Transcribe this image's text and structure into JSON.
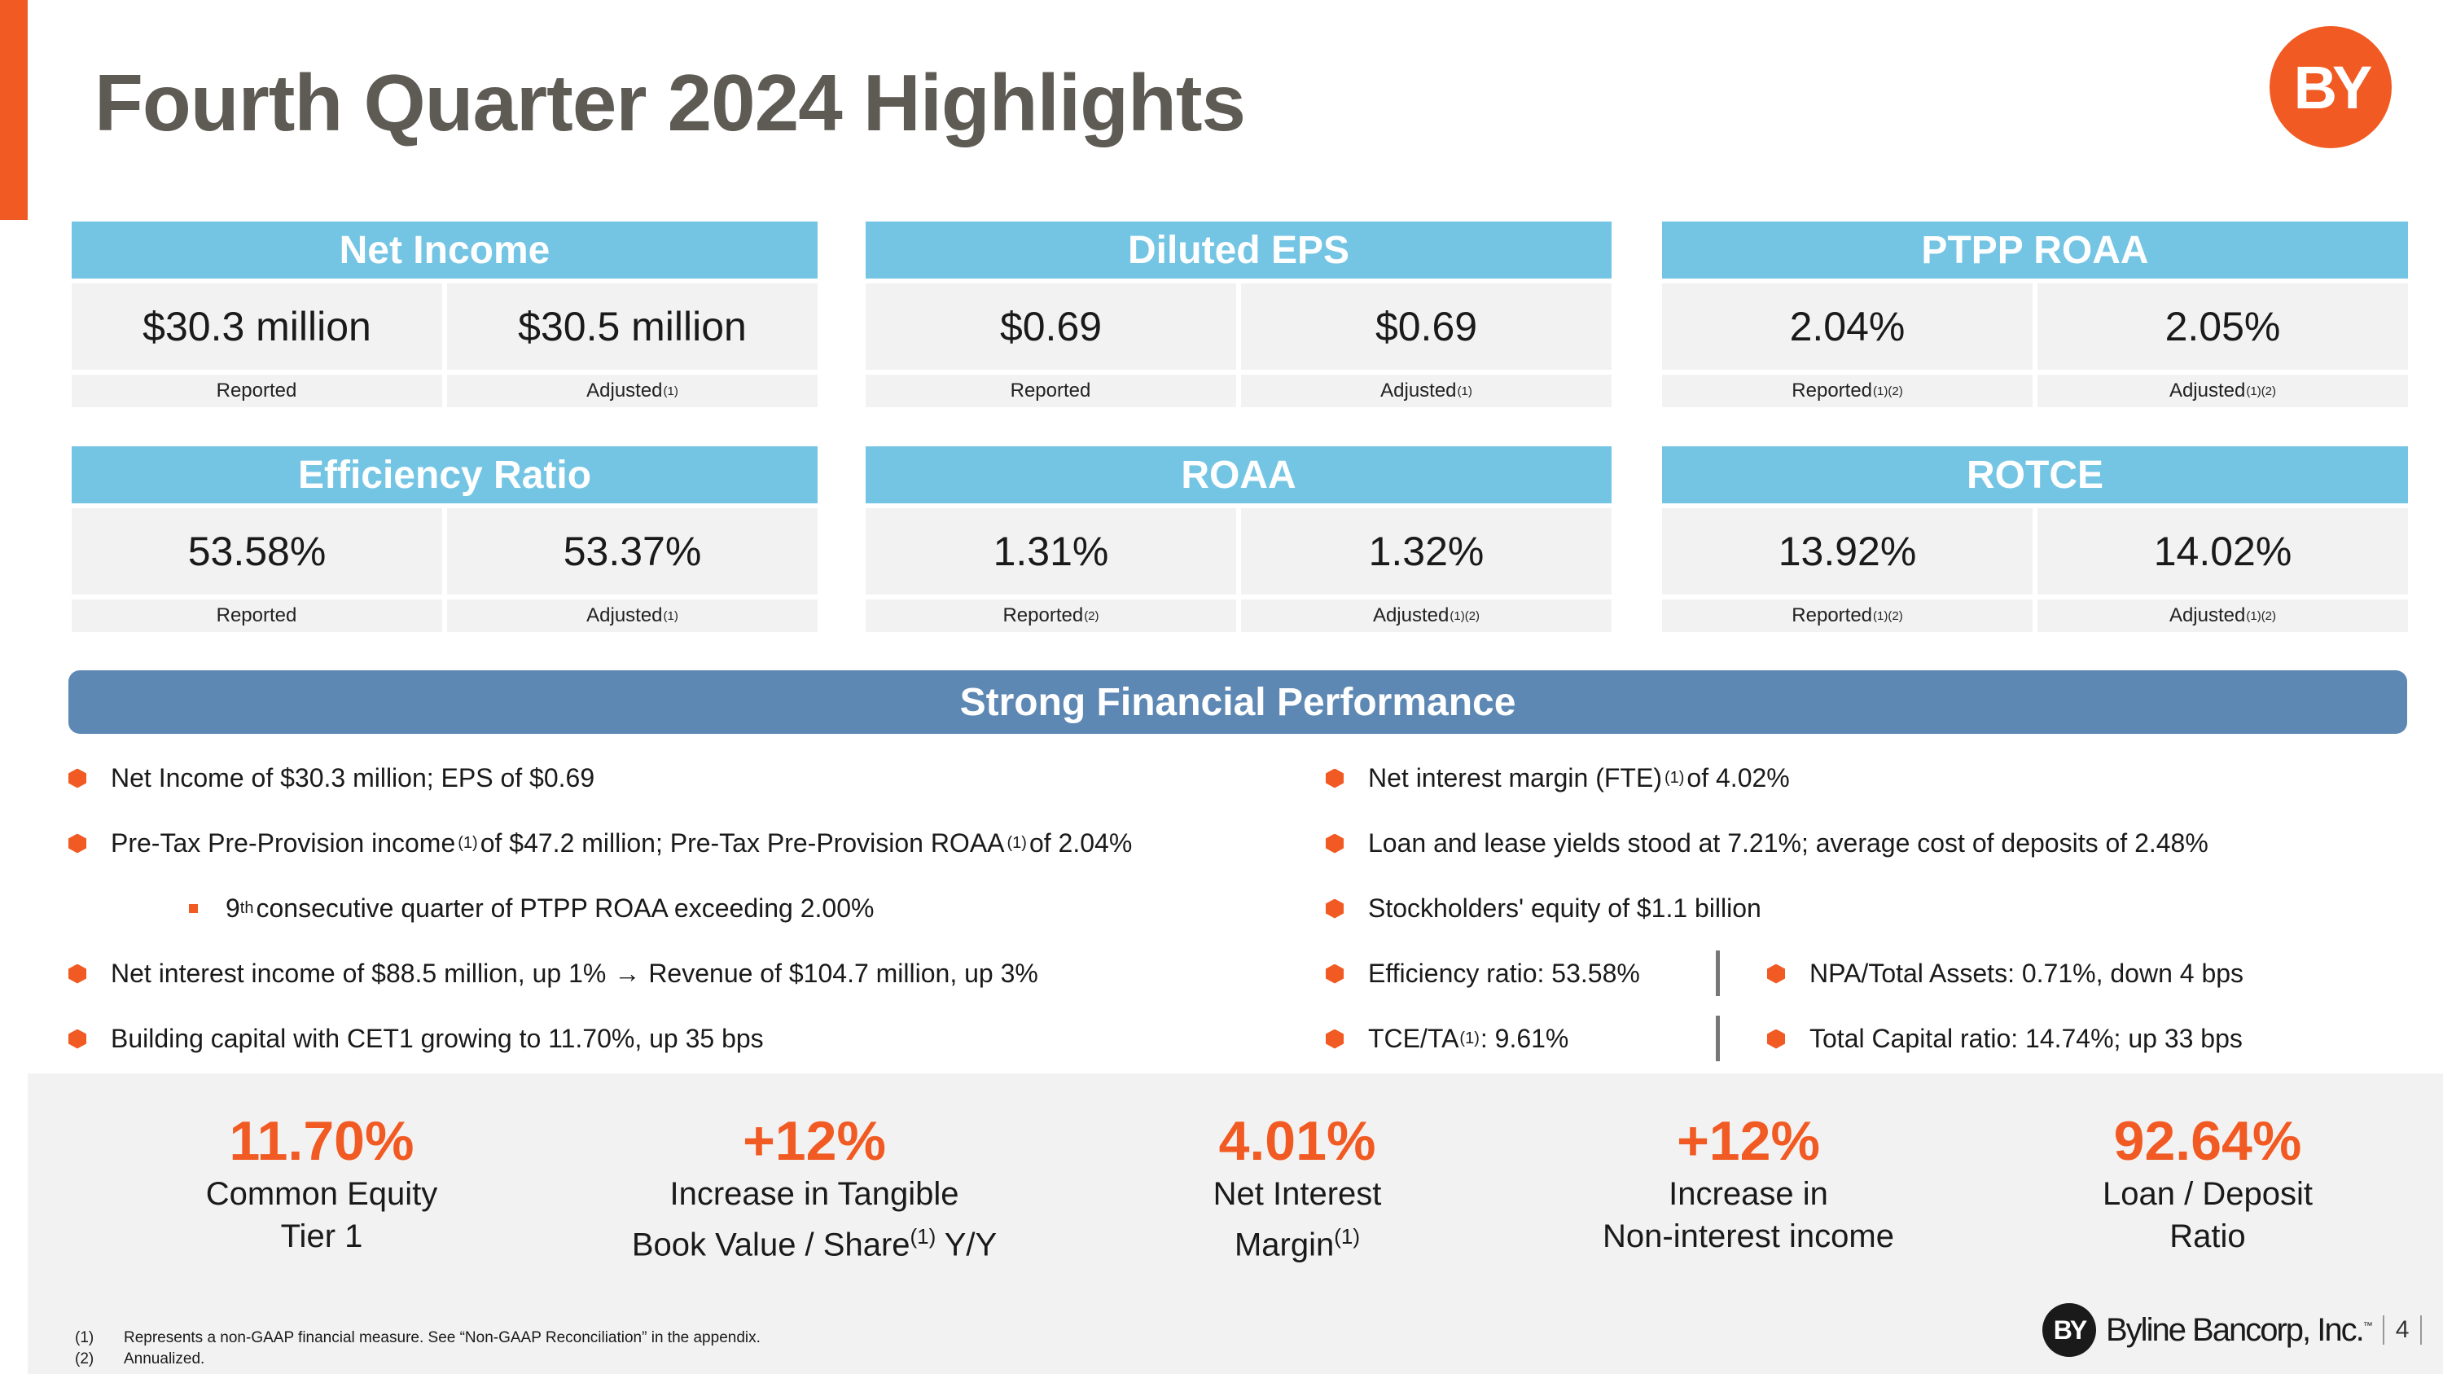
{
  "title": "Fourth Quarter 2024 Highlights",
  "logo_text": "BY",
  "colors": {
    "accent": "#F15A22",
    "card_header": "#74C5E4",
    "banner": "#5E88B4",
    "title": "#5e5b55"
  },
  "cards": [
    {
      "title": "Net Income",
      "reported_value": "$30.3 million",
      "adjusted_value": "$30.5 million",
      "reported_label": "Reported",
      "reported_sup": "",
      "adjusted_label": "Adjusted",
      "adjusted_sup": "(1)"
    },
    {
      "title": "Diluted EPS",
      "reported_value": "$0.69",
      "adjusted_value": "$0.69",
      "reported_label": "Reported",
      "reported_sup": "",
      "adjusted_label": "Adjusted",
      "adjusted_sup": "(1)"
    },
    {
      "title": "PTPP ROAA",
      "reported_value": "2.04%",
      "adjusted_value": "2.05%",
      "reported_label": "Reported",
      "reported_sup": "(1)(2)",
      "adjusted_label": "Adjusted",
      "adjusted_sup": "(1)(2)"
    },
    {
      "title": "Efficiency Ratio",
      "reported_value": "53.58%",
      "adjusted_value": "53.37%",
      "reported_label": "Reported",
      "reported_sup": "",
      "adjusted_label": "Adjusted",
      "adjusted_sup": "(1)"
    },
    {
      "title": "ROAA",
      "reported_value": "1.31%",
      "adjusted_value": "1.32%",
      "reported_label": "Reported",
      "reported_sup": "(2)",
      "adjusted_label": "Adjusted",
      "adjusted_sup": "(1)(2)"
    },
    {
      "title": "ROTCE",
      "reported_value": "13.92%",
      "adjusted_value": "14.02%",
      "reported_label": "Reported",
      "reported_sup": "(1)(2)",
      "adjusted_label": "Adjusted",
      "adjusted_sup": "(1)(2)"
    }
  ],
  "banner": "Strong Financial Performance",
  "bullets_left": {
    "b1": "Net Income of $30.3 million; EPS of $0.69",
    "b2": {
      "a": "Pre-Tax Pre-Provision income",
      "sup1": "(1)",
      "b": "of $47.2 million; Pre-Tax Pre-Provision ROAA",
      "sup2": "(1)",
      "c": "of 2.04%"
    },
    "b3": {
      "a": "9",
      "sup": "th",
      "b": "consecutive quarter of PTPP ROAA exceeding 2.00%"
    },
    "b4": {
      "a": "Net interest income of $88.5 million, up 1%",
      "arrow": "→",
      "b": "Revenue of $104.7 million, up 3%"
    },
    "b5": "Building capital with CET1 growing to 11.70%, up 35 bps"
  },
  "bullets_right": {
    "b1": {
      "a": "Net interest margin (FTE)",
      "sup": "(1)",
      "b": "of 4.02%"
    },
    "b2": "Loan and lease yields stood at 7.21%; average cost of deposits of 2.48%",
    "b3": "Stockholders' equity of $1.1 billion",
    "b4": "Efficiency ratio: 53.58%",
    "b5": {
      "a": "TCE/TA",
      "sup": "(1)",
      "b": ": 9.61%"
    },
    "b6": "NPA/Total Assets: 0.71%, down 4 bps",
    "b7": "Total Capital ratio: 14.74%; up 33 bps"
  },
  "stats": [
    {
      "value": "11.70%",
      "line1": "Common Equity",
      "line2": "Tier 1",
      "line2_sup": "",
      "line2_after": ""
    },
    {
      "value": "+12%",
      "line1": "Increase in Tangible",
      "line2": "Book Value / Share",
      "line2_sup": "(1)",
      "line2_after": " Y/Y"
    },
    {
      "value": "4.01%",
      "line1": "Net Interest",
      "line2": "Margin",
      "line2_sup": "(1)",
      "line2_after": ""
    },
    {
      "value": "+12%",
      "line1": "Increase in",
      "line2": "Non-interest income",
      "line2_sup": "",
      "line2_after": ""
    },
    {
      "value": "92.64%",
      "line1": "Loan / Deposit",
      "line2": "Ratio",
      "line2_sup": "",
      "line2_after": ""
    }
  ],
  "footnotes": [
    {
      "num": "(1)",
      "text": "Represents a non-GAAP financial measure.  See “Non-GAAP Reconciliation” in the appendix."
    },
    {
      "num": "(2)",
      "text": "Annualized."
    }
  ],
  "brand": {
    "logo": "BY",
    "name": "Byline Bancorp, Inc.",
    "tm": "™",
    "page": "4"
  }
}
